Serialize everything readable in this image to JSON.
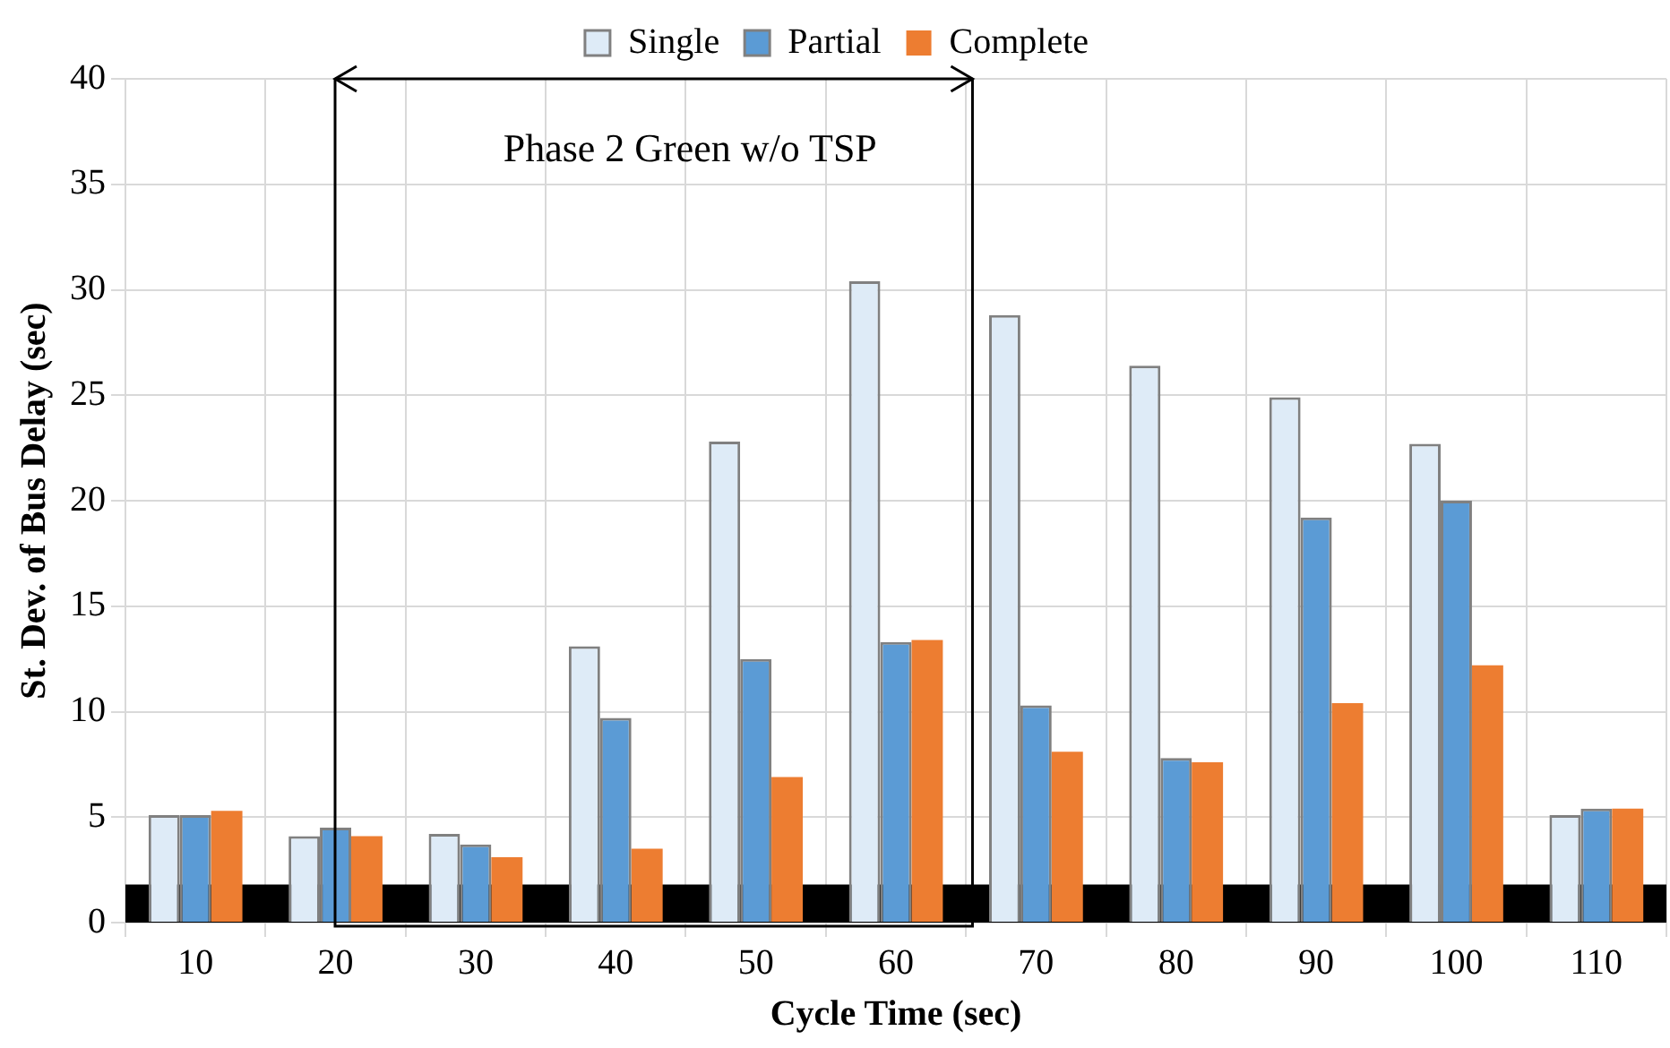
{
  "chart_data": {
    "type": "bar",
    "xlabel": "Cycle Time (sec)",
    "ylabel": "St. Dev. of Bus Delay (sec)",
    "categories": [
      "10",
      "20",
      "30",
      "40",
      "50",
      "60",
      "70",
      "80",
      "90",
      "100",
      "110"
    ],
    "series": [
      {
        "name": "Single",
        "color": "#deebf7",
        "values": [
          5.1,
          4.1,
          4.2,
          13.1,
          22.8,
          30.4,
          28.8,
          26.4,
          24.9,
          22.7,
          5.1
        ]
      },
      {
        "name": "Partial",
        "color": "#5b9bd5",
        "values": [
          5.1,
          4.5,
          3.7,
          9.7,
          12.5,
          13.3,
          10.3,
          7.8,
          19.2,
          20.0,
          5.4
        ]
      },
      {
        "name": "Complete",
        "color": "#ed7d31",
        "values": [
          5.3,
          4.1,
          3.1,
          3.5,
          6.9,
          13.4,
          8.1,
          7.6,
          10.4,
          12.2,
          5.4
        ]
      }
    ],
    "ylim": [
      0,
      40
    ],
    "yticks": [
      0,
      5,
      10,
      15,
      20,
      25,
      30,
      35,
      40
    ],
    "grid": true,
    "legend": "top",
    "bands": [
      {
        "axis": "y",
        "from": 0,
        "to": 1.8,
        "color": "#000000"
      }
    ],
    "annotations": [
      "Phase 2 Green w/o TSP"
    ]
  }
}
